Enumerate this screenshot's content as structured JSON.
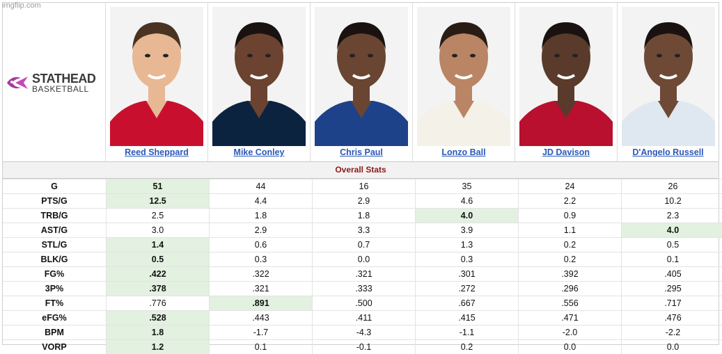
{
  "watermark": "imgflip.com",
  "logo": {
    "line1": "STATHEAD",
    "line2": "BASKETBALL"
  },
  "section_title": "Overall Stats",
  "players": [
    {
      "name": "Reed Sheppard",
      "jersey": "#c8102e"
    },
    {
      "name": "Mike Conley",
      "jersey": "#0c2340"
    },
    {
      "name": "Chris Paul",
      "jersey": "#1d428a"
    },
    {
      "name": "Lonzo Ball",
      "jersey": "#f4f1e8"
    },
    {
      "name": "JD Davison",
      "jersey": "#b8102e"
    },
    {
      "name": "D'Angelo Russell",
      "jersey": "#dfe8f0"
    }
  ],
  "rows": [
    {
      "label": "G",
      "values": [
        "51",
        "44",
        "16",
        "35",
        "24",
        "26"
      ],
      "best": [
        0
      ]
    },
    {
      "label": "PTS/G",
      "values": [
        "12.5",
        "4.4",
        "2.9",
        "4.6",
        "2.2",
        "10.2"
      ],
      "best": [
        0
      ]
    },
    {
      "label": "TRB/G",
      "values": [
        "2.5",
        "1.8",
        "1.8",
        "4.0",
        "0.9",
        "2.3"
      ],
      "best": [
        3
      ]
    },
    {
      "label": "AST/G",
      "values": [
        "3.0",
        "2.9",
        "3.3",
        "3.9",
        "1.1",
        "4.0"
      ],
      "best": [
        5
      ]
    },
    {
      "label": "STL/G",
      "values": [
        "1.4",
        "0.6",
        "0.7",
        "1.3",
        "0.2",
        "0.5"
      ],
      "best": [
        0
      ]
    },
    {
      "label": "BLK/G",
      "values": [
        "0.5",
        "0.3",
        "0.0",
        "0.3",
        "0.2",
        "0.1"
      ],
      "best": [
        0
      ]
    },
    {
      "label": "FG%",
      "values": [
        ".422",
        ".322",
        ".321",
        ".301",
        ".392",
        ".405"
      ],
      "best": [
        0
      ]
    },
    {
      "label": "3P%",
      "values": [
        ".378",
        ".321",
        ".333",
        ".272",
        ".296",
        ".295"
      ],
      "best": [
        0
      ]
    },
    {
      "label": "FT%",
      "values": [
        ".776",
        ".891",
        ".500",
        ".667",
        ".556",
        ".717"
      ],
      "best": [
        1
      ]
    },
    {
      "label": "eFG%",
      "values": [
        ".528",
        ".443",
        ".411",
        ".415",
        ".471",
        ".476"
      ],
      "best": [
        0
      ]
    },
    {
      "label": "BPM",
      "values": [
        "1.8",
        "-1.7",
        "-4.3",
        "-1.1",
        "-2.0",
        "-2.2"
      ],
      "best": [
        0
      ]
    },
    {
      "label": "VORP",
      "values": [
        "1.2",
        "0.1",
        "-0.1",
        "0.2",
        "0.0",
        "0.0"
      ],
      "best": [
        0
      ]
    }
  ],
  "colors": {
    "highlight": "#e3f1e0",
    "link": "#2a58b8",
    "section_title": "#8b1a1a",
    "logo_icon": "#a43a9c"
  }
}
